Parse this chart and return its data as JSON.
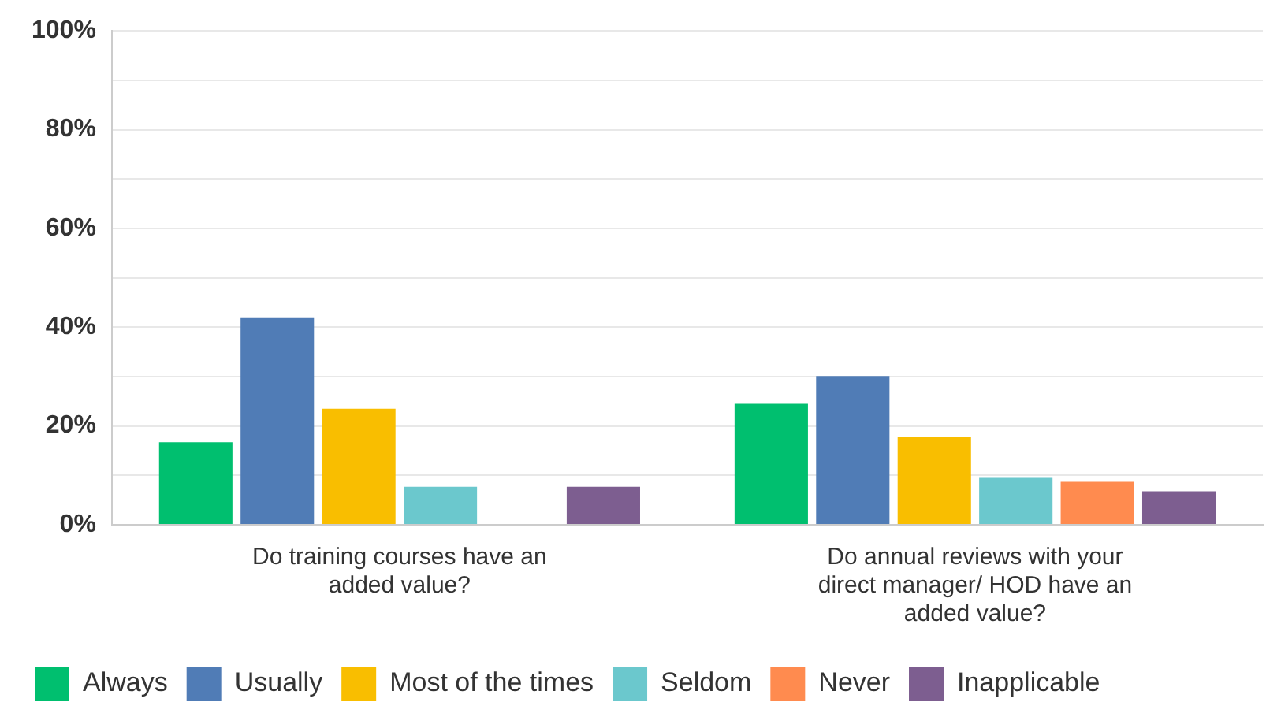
{
  "chart_data": {
    "type": "bar",
    "categories": [
      "Do training courses have an added value?",
      "Do annual reviews with your direct manager/ HOD have an added value?"
    ],
    "series": [
      {
        "name": "Always",
        "color": "#00bf6f",
        "values": [
          16.7,
          24.5
        ]
      },
      {
        "name": "Usually",
        "color": "#507cb6",
        "values": [
          42.0,
          30.1
        ]
      },
      {
        "name": "Most of the times",
        "color": "#f9be00",
        "values": [
          23.5,
          17.7
        ]
      },
      {
        "name": "Seldom",
        "color": "#6bc8cd",
        "values": [
          7.7,
          9.5
        ]
      },
      {
        "name": "Never",
        "color": "#ff8b4f",
        "values": [
          0,
          8.7
        ]
      },
      {
        "name": "Inapplicable",
        "color": "#7d5e90",
        "values": [
          7.7,
          6.8
        ]
      }
    ],
    "ylim": [
      0,
      100
    ],
    "yticks": [
      {
        "value": 0,
        "label": "0%"
      },
      {
        "value": 10,
        "label": null
      },
      {
        "value": 20,
        "label": "20%"
      },
      {
        "value": 30,
        "label": null
      },
      {
        "value": 40,
        "label": "40%"
      },
      {
        "value": 50,
        "label": null
      },
      {
        "value": 60,
        "label": "60%"
      },
      {
        "value": 70,
        "label": null
      },
      {
        "value": 80,
        "label": "80%"
      },
      {
        "value": 90,
        "label": null
      },
      {
        "value": 100,
        "label": "100%"
      }
    ],
    "grid": "y",
    "legend": "bottom left"
  }
}
